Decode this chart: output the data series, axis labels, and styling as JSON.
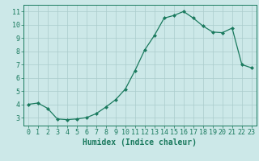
{
  "x": [
    0,
    1,
    2,
    3,
    4,
    5,
    6,
    7,
    8,
    9,
    10,
    11,
    12,
    13,
    14,
    15,
    16,
    17,
    18,
    19,
    20,
    21,
    22,
    23
  ],
  "y": [
    4.0,
    4.1,
    3.7,
    2.9,
    2.85,
    2.9,
    3.0,
    3.3,
    3.8,
    4.35,
    5.15,
    6.55,
    8.1,
    9.2,
    10.5,
    10.7,
    11.0,
    10.5,
    9.9,
    9.45,
    9.4,
    9.75,
    7.0,
    6.75
  ],
  "title": "",
  "xlabel": "Humidex (Indice chaleur)",
  "ylabel": "",
  "xlim": [
    -0.5,
    23.5
  ],
  "ylim": [
    2.4,
    11.5
  ],
  "yticks": [
    3,
    4,
    5,
    6,
    7,
    8,
    9,
    10,
    11
  ],
  "xticks": [
    0,
    1,
    2,
    3,
    4,
    5,
    6,
    7,
    8,
    9,
    10,
    11,
    12,
    13,
    14,
    15,
    16,
    17,
    18,
    19,
    20,
    21,
    22,
    23
  ],
  "line_color": "#1a7a5e",
  "marker": "D",
  "marker_size": 2.0,
  "bg_color": "#cce8e8",
  "grid_color": "#aacccc",
  "axis_color": "#1a7a5e",
  "tick_color": "#1a7a5e",
  "label_color": "#1a7a5e",
  "font_family": "monospace",
  "tick_fontsize": 6.0,
  "xlabel_fontsize": 7.0
}
